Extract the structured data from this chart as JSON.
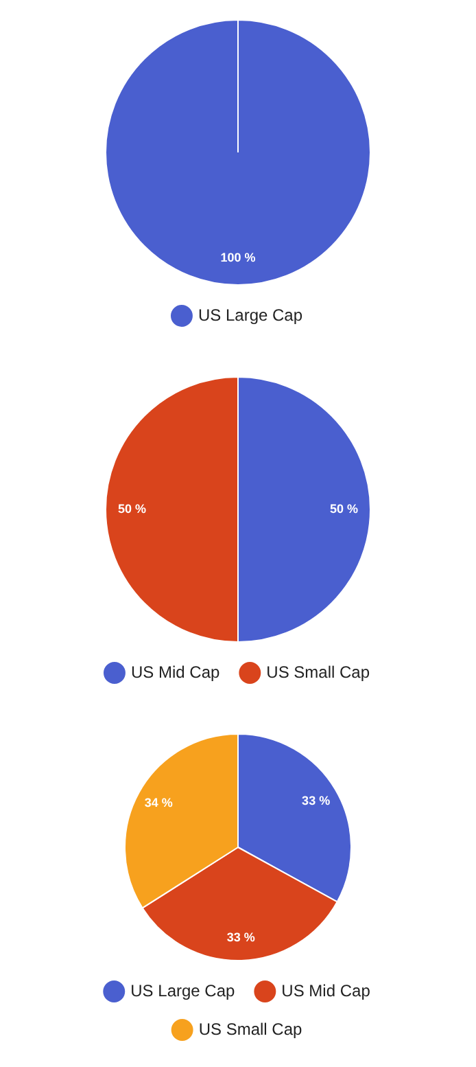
{
  "chart_data": [
    {
      "type": "pie",
      "categories": [
        "US Large Cap"
      ],
      "values": [
        100
      ],
      "colors": [
        "#4a5fcf"
      ],
      "value_labels": [
        "100 %"
      ],
      "legend": "bottom"
    },
    {
      "type": "pie",
      "categories": [
        "US Mid Cap",
        "US Small Cap"
      ],
      "values": [
        50,
        50
      ],
      "colors": [
        "#4a5fcf",
        "#d9441c"
      ],
      "value_labels": [
        "50 %",
        "50 %"
      ],
      "legend": "bottom"
    },
    {
      "type": "pie",
      "categories": [
        "US Large Cap",
        "US Mid Cap",
        "US Small Cap"
      ],
      "values": [
        33,
        33,
        34
      ],
      "colors": [
        "#4a5fcf",
        "#d9441c",
        "#f7a11e"
      ],
      "value_labels": [
        "33 %",
        "33 %",
        "34 %"
      ],
      "legend": "bottom"
    }
  ]
}
